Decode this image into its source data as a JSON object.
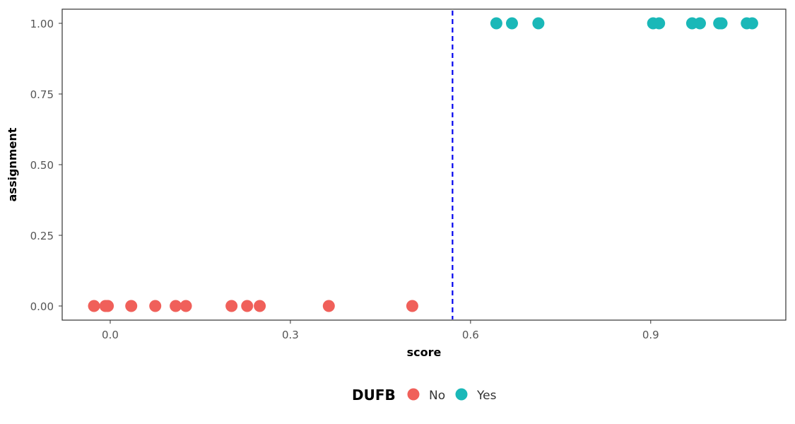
{
  "chart_data": {
    "type": "scatter",
    "xlabel": "score",
    "ylabel": "assignment",
    "xlim": [
      -0.08,
      1.125
    ],
    "ylim": [
      -0.05,
      1.05
    ],
    "x_ticks": [
      0.0,
      0.3,
      0.6,
      0.9
    ],
    "x_tick_labels": [
      "0.0",
      "0.3",
      "0.6",
      "0.9"
    ],
    "y_ticks": [
      0.0,
      0.25,
      0.5,
      0.75,
      1.0
    ],
    "y_tick_labels": [
      "0.00",
      "0.25",
      "0.50",
      "0.75",
      "1.00"
    ],
    "grid": false,
    "cutoff_line": {
      "x": 0.57,
      "style": "dashed",
      "color": "#0000ee"
    },
    "legend": {
      "title": "DUFB",
      "position": "bottom"
    },
    "series": [
      {
        "name": "No",
        "color": "#f0605a",
        "points": [
          {
            "x": -0.027,
            "y": 0
          },
          {
            "x": -0.008,
            "y": 0
          },
          {
            "x": -0.004,
            "y": 0
          },
          {
            "x": 0.035,
            "y": 0
          },
          {
            "x": 0.075,
            "y": 0
          },
          {
            "x": 0.109,
            "y": 0
          },
          {
            "x": 0.126,
            "y": 0
          },
          {
            "x": 0.202,
            "y": 0
          },
          {
            "x": 0.228,
            "y": 0
          },
          {
            "x": 0.249,
            "y": 0
          },
          {
            "x": 0.364,
            "y": 0
          },
          {
            "x": 0.503,
            "y": 0
          }
        ]
      },
      {
        "name": "Yes",
        "color": "#1ab8b8",
        "points": [
          {
            "x": 0.643,
            "y": 1
          },
          {
            "x": 0.669,
            "y": 1
          },
          {
            "x": 0.713,
            "y": 1
          },
          {
            "x": 0.904,
            "y": 1
          },
          {
            "x": 0.914,
            "y": 1
          },
          {
            "x": 0.969,
            "y": 1
          },
          {
            "x": 0.982,
            "y": 1
          },
          {
            "x": 1.014,
            "y": 1
          },
          {
            "x": 1.018,
            "y": 1
          },
          {
            "x": 1.06,
            "y": 1
          },
          {
            "x": 1.069,
            "y": 1
          }
        ]
      }
    ]
  }
}
